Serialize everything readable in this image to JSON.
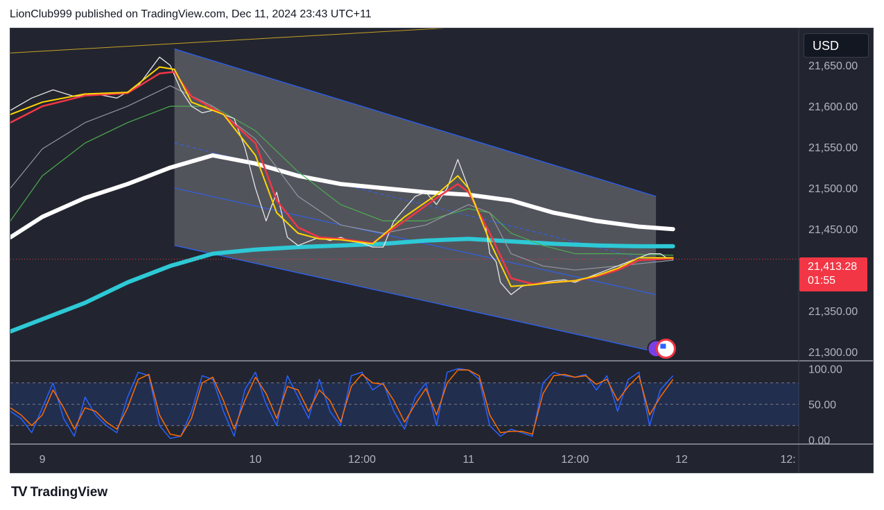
{
  "header": {
    "text": "LionClub999 published on TradingView.com, Dec 11, 2024 23:43 UTC+11"
  },
  "currency_label": "USD",
  "last_price": {
    "value": "21,413.28",
    "countdown": "01:55"
  },
  "footer": {
    "brand": "TradingView"
  },
  "colors": {
    "background": "#22252f",
    "candle_up": "#ffffff",
    "candle_down": "#f23645",
    "ema_fast": "#ffd600",
    "ema_mid": "#f23645",
    "ma_gray": "#9598a1",
    "ma_green": "#4caf50",
    "ma_white": "#ffffff",
    "ma_cyan": "#2ec9d6",
    "channel": "#2962ff",
    "stoch_k": "#2962ff",
    "stoch_d": "#ff6d00"
  },
  "chart_data": [
    {
      "type": "line",
      "symbol_price_axis": {
        "ylim": [
          21290,
          21695
        ],
        "ticks": [
          "21,650.00",
          "21,600.00",
          "21,550.00",
          "21,500.00",
          "21,450.00",
          "21,350.00",
          "21,300.00"
        ],
        "tick_values": [
          21650,
          21600,
          21550,
          21500,
          21450,
          21350,
          21300
        ]
      },
      "x_axis": {
        "ticks": [
          "9",
          "10",
          "12:00",
          "11",
          "12:00",
          "12",
          "12:"
        ],
        "tick_t": [
          9.0,
          10.0,
          10.5,
          11.0,
          11.5,
          12.0,
          12.5
        ],
        "xlim": [
          8.85,
          12.55
        ]
      },
      "series": [
        {
          "key": "price",
          "t": [
            8.85,
            8.95,
            9.05,
            9.15,
            9.25,
            9.35,
            9.45,
            9.55,
            9.6,
            9.65,
            9.7,
            9.75,
            9.8,
            9.85,
            9.9,
            9.95,
            10.0,
            10.05,
            10.1,
            10.15,
            10.2,
            10.25,
            10.3,
            10.35,
            10.4,
            10.45,
            10.5,
            10.55,
            10.6,
            10.65,
            10.7,
            10.75,
            10.8,
            10.85,
            10.9,
            10.95,
            11.0,
            11.05,
            11.08,
            11.1,
            11.13,
            11.15,
            11.2,
            11.25,
            11.3,
            11.35,
            11.4,
            11.45,
            11.5,
            11.55,
            11.6,
            11.65,
            11.7,
            11.75,
            11.8,
            11.85,
            11.9,
            11.93,
            11.96
          ],
          "values": [
            21595,
            21610,
            21620,
            21612,
            21615,
            21610,
            21625,
            21660,
            21650,
            21620,
            21600,
            21592,
            21595,
            21590,
            21585,
            21550,
            21500,
            21460,
            21495,
            21440,
            21430,
            21435,
            21440,
            21436,
            21440,
            21435,
            21433,
            21428,
            21428,
            21460,
            21475,
            21490,
            21495,
            21480,
            21500,
            21535,
            21500,
            21470,
            21455,
            21420,
            21410,
            21385,
            21370,
            21380,
            21383,
            21385,
            21387,
            21388,
            21385,
            21390,
            21395,
            21400,
            21405,
            21410,
            21415,
            21420,
            21420,
            21415,
            21413
          ]
        },
        {
          "key": "ema_fast",
          "t": [
            8.85,
            9.0,
            9.2,
            9.4,
            9.55,
            9.62,
            9.7,
            9.85,
            10.0,
            10.1,
            10.2,
            10.3,
            10.4,
            10.55,
            10.7,
            10.85,
            10.95,
            11.0,
            11.1,
            11.2,
            11.3,
            11.4,
            11.5,
            11.6,
            11.7,
            11.8,
            11.96
          ],
          "values": [
            21590,
            21605,
            21615,
            21617,
            21648,
            21645,
            21605,
            21590,
            21540,
            21470,
            21445,
            21438,
            21437,
            21432,
            21465,
            21492,
            21515,
            21500,
            21435,
            21380,
            21382,
            21385,
            21387,
            21393,
            21402,
            21415,
            21415
          ]
        },
        {
          "key": "ema_mid",
          "t": [
            8.85,
            9.0,
            9.2,
            9.4,
            9.55,
            9.62,
            9.7,
            9.85,
            10.0,
            10.1,
            10.2,
            10.3,
            10.4,
            10.55,
            10.7,
            10.85,
            10.95,
            11.0,
            11.1,
            11.2,
            11.3,
            11.4,
            11.5,
            11.6,
            11.7,
            11.8,
            11.96
          ],
          "values": [
            21580,
            21600,
            21613,
            21616,
            21640,
            21642,
            21612,
            21590,
            21555,
            21485,
            21452,
            21440,
            21438,
            21433,
            21460,
            21488,
            21505,
            21495,
            21445,
            21390,
            21383,
            21385,
            21387,
            21392,
            21400,
            21412,
            21414
          ]
        },
        {
          "key": "ma_gray",
          "t": [
            8.85,
            9.0,
            9.2,
            9.4,
            9.6,
            9.8,
            10.0,
            10.2,
            10.4,
            10.6,
            10.8,
            11.0,
            11.1,
            11.2,
            11.35,
            11.5,
            11.7,
            11.96
          ],
          "values": [
            21500,
            21548,
            21580,
            21600,
            21625,
            21600,
            21560,
            21490,
            21455,
            21445,
            21455,
            21480,
            21470,
            21420,
            21405,
            21400,
            21405,
            21412
          ]
        },
        {
          "key": "ma_green",
          "t": [
            8.85,
            9.0,
            9.2,
            9.4,
            9.6,
            9.8,
            10.0,
            10.2,
            10.4,
            10.6,
            10.8,
            11.0,
            11.1,
            11.2,
            11.35,
            11.5,
            11.7,
            11.96
          ],
          "values": [
            21460,
            21515,
            21555,
            21580,
            21600,
            21600,
            21570,
            21520,
            21480,
            21460,
            21460,
            21475,
            21470,
            21445,
            21430,
            21420,
            21420,
            21418
          ]
        },
        {
          "key": "ma_white",
          "t": [
            8.85,
            9.0,
            9.2,
            9.4,
            9.6,
            9.8,
            10.0,
            10.2,
            10.4,
            10.6,
            10.8,
            11.0,
            11.2,
            11.4,
            11.6,
            11.8,
            11.96
          ],
          "values": [
            21440,
            21465,
            21488,
            21505,
            21525,
            21540,
            21530,
            21515,
            21505,
            21500,
            21495,
            21492,
            21485,
            21470,
            21460,
            21453,
            21450
          ]
        },
        {
          "key": "ma_cyan",
          "t": [
            8.85,
            9.0,
            9.2,
            9.4,
            9.6,
            9.8,
            10.0,
            10.2,
            10.4,
            10.6,
            10.8,
            11.0,
            11.2,
            11.4,
            11.6,
            11.8,
            11.96
          ],
          "values": [
            21325,
            21340,
            21360,
            21385,
            21405,
            21420,
            21425,
            21428,
            21430,
            21432,
            21436,
            21438,
            21435,
            21432,
            21430,
            21429,
            21429
          ]
        },
        {
          "key": "yellow_trend",
          "t": [
            8.85,
            12.0
          ],
          "values": [
            21665,
            21712
          ]
        }
      ],
      "channel": {
        "t_start": 9.62,
        "t_end": 11.88,
        "upper": [
          21670,
          21490
        ],
        "lower": [
          21430,
          21300
        ],
        "mid_upper": [
          21555,
          21410
        ],
        "mid_lower": [
          21500,
          21370
        ]
      }
    },
    {
      "type": "line",
      "name_axis": {
        "ylim": [
          -5,
          110
        ],
        "ticks": [
          "100.00",
          "50.00",
          "0.00"
        ],
        "tick_values": [
          100,
          50,
          0
        ],
        "bands": [
          80,
          20
        ]
      },
      "series": [
        {
          "key": "stoch_k",
          "t": [
            8.85,
            8.9,
            8.95,
            9.0,
            9.05,
            9.1,
            9.15,
            9.2,
            9.25,
            9.3,
            9.35,
            9.4,
            9.45,
            9.5,
            9.55,
            9.6,
            9.65,
            9.7,
            9.75,
            9.8,
            9.85,
            9.9,
            9.95,
            10.0,
            10.05,
            10.1,
            10.15,
            10.2,
            10.25,
            10.3,
            10.35,
            10.4,
            10.45,
            10.5,
            10.55,
            10.6,
            10.65,
            10.7,
            10.75,
            10.8,
            10.85,
            10.9,
            10.95,
            11.0,
            11.05,
            11.1,
            11.15,
            11.2,
            11.25,
            11.3,
            11.35,
            11.4,
            11.45,
            11.5,
            11.55,
            11.6,
            11.65,
            11.7,
            11.75,
            11.8,
            11.85,
            11.9,
            11.96
          ],
          "values": [
            40,
            30,
            10,
            45,
            80,
            30,
            5,
            60,
            35,
            20,
            10,
            60,
            95,
            90,
            20,
            2,
            5,
            40,
            90,
            85,
            40,
            5,
            70,
            95,
            50,
            20,
            90,
            60,
            30,
            85,
            40,
            20,
            90,
            95,
            70,
            80,
            40,
            15,
            60,
            80,
            20,
            95,
            100,
            98,
            85,
            20,
            5,
            15,
            10,
            5,
            80,
            95,
            90,
            88,
            92,
            70,
            90,
            40,
            85,
            95,
            20,
            70,
            90
          ]
        },
        {
          "key": "stoch_d",
          "t": [
            8.85,
            8.9,
            8.95,
            9.0,
            9.05,
            9.1,
            9.15,
            9.2,
            9.25,
            9.3,
            9.35,
            9.4,
            9.45,
            9.5,
            9.55,
            9.6,
            9.65,
            9.7,
            9.75,
            9.8,
            9.85,
            9.9,
            9.95,
            10.0,
            10.05,
            10.1,
            10.15,
            10.2,
            10.25,
            10.3,
            10.35,
            10.4,
            10.45,
            10.5,
            10.55,
            10.6,
            10.65,
            10.7,
            10.75,
            10.8,
            10.85,
            10.9,
            10.95,
            11.0,
            11.05,
            11.1,
            11.15,
            11.2,
            11.25,
            11.3,
            11.35,
            11.4,
            11.45,
            11.5,
            11.55,
            11.6,
            11.65,
            11.7,
            11.75,
            11.8,
            11.85,
            11.9,
            11.96
          ],
          "values": [
            45,
            35,
            20,
            35,
            70,
            45,
            15,
            45,
            40,
            25,
            15,
            45,
            85,
            92,
            35,
            8,
            5,
            30,
            80,
            88,
            55,
            15,
            55,
            88,
            65,
            30,
            75,
            70,
            40,
            70,
            55,
            25,
            75,
            92,
            80,
            78,
            55,
            25,
            50,
            72,
            35,
            80,
            98,
            98,
            90,
            35,
            10,
            12,
            12,
            8,
            65,
            90,
            92,
            88,
            90,
            78,
            85,
            55,
            75,
            90,
            35,
            60,
            85
          ]
        }
      ]
    }
  ]
}
